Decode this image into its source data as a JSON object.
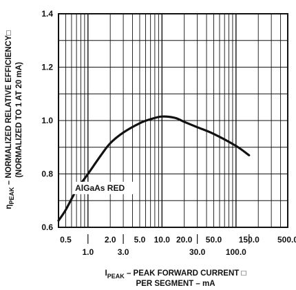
{
  "chart_data": {
    "type": "line",
    "x_scale": "log",
    "y_scale": "linear",
    "xlim": [
      0.4,
      500
    ],
    "ylim": [
      0.6,
      1.4
    ],
    "grid": true,
    "x_ticks": [
      {
        "value": 0.5,
        "label": "0.5",
        "row": 1
      },
      {
        "value": 1,
        "label": "1.0",
        "row": 2
      },
      {
        "value": 2,
        "label": "2.0",
        "row": 1
      },
      {
        "value": 3,
        "label": "3.0",
        "row": 2
      },
      {
        "value": 5,
        "label": "5.0",
        "row": 1
      },
      {
        "value": 10,
        "label": "10.0",
        "row": 1
      },
      {
        "value": 20,
        "label": "20.0",
        "row": 1
      },
      {
        "value": 30,
        "label": "30.0",
        "row": 2
      },
      {
        "value": 50,
        "label": "50.0",
        "row": 1
      },
      {
        "value": 100,
        "label": "100.0",
        "row": 2
      },
      {
        "value": 150,
        "label": "150.0",
        "row": 1
      },
      {
        "value": 500,
        "label": "500.0",
        "row": 1
      }
    ],
    "y_ticks": [
      {
        "value": 0.6,
        "label": "0.6"
      },
      {
        "value": 0.8,
        "label": "0.8"
      },
      {
        "value": 1.0,
        "label": "1.0"
      },
      {
        "value": 1.2,
        "label": "1.2"
      },
      {
        "value": 1.4,
        "label": "1.4"
      }
    ],
    "xlabel": {
      "sym": "I",
      "sub": "PEAK",
      "line1": " – PEAK FORWARD CURRENT □",
      "line2": "PER SEGMENT – mA"
    },
    "ylabel": {
      "sym": "η",
      "sub": "PEAK",
      "line1": " – NORMALIZED RELATIVE EFFICIENCY□",
      "line2": "(NORMALIZED TO 1 AT 20 mA)"
    },
    "series": [
      {
        "name": "AlGaAs RED",
        "x": [
          0.4,
          0.5,
          0.7,
          1.0,
          1.5,
          2.0,
          3.0,
          5.0,
          7.0,
          10.0,
          15.0,
          20.0,
          30.0,
          50.0,
          100.0,
          150.0
        ],
        "y": [
          0.625,
          0.665,
          0.74,
          0.8,
          0.87,
          0.915,
          0.955,
          0.99,
          1.005,
          1.015,
          1.01,
          0.995,
          0.975,
          0.95,
          0.905,
          0.87
        ]
      }
    ],
    "annotations": [
      {
        "text": "AlGaAs RED",
        "x": 0.7,
        "y": 0.75
      }
    ]
  }
}
